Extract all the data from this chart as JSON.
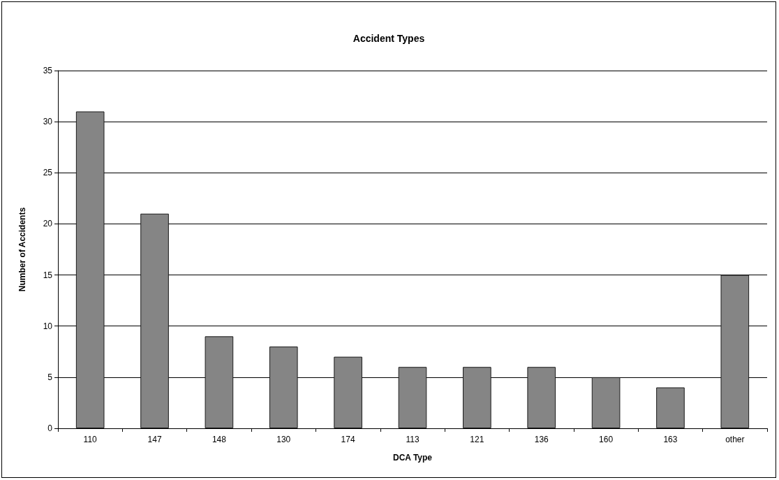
{
  "chart_data": {
    "type": "bar",
    "title": "Accident Types",
    "xlabel": "DCA Type",
    "ylabel": "Number of Accidents",
    "categories": [
      "110",
      "147",
      "148",
      "130",
      "174",
      "113",
      "121",
      "136",
      "160",
      "163",
      "other"
    ],
    "values": [
      31,
      21,
      9,
      8,
      7,
      6,
      6,
      6,
      5,
      4,
      15
    ],
    "color": "#858585",
    "ylim": [
      0,
      35
    ],
    "yticks": [
      0,
      5,
      10,
      15,
      20,
      25,
      30,
      35
    ],
    "grid": "y"
  }
}
